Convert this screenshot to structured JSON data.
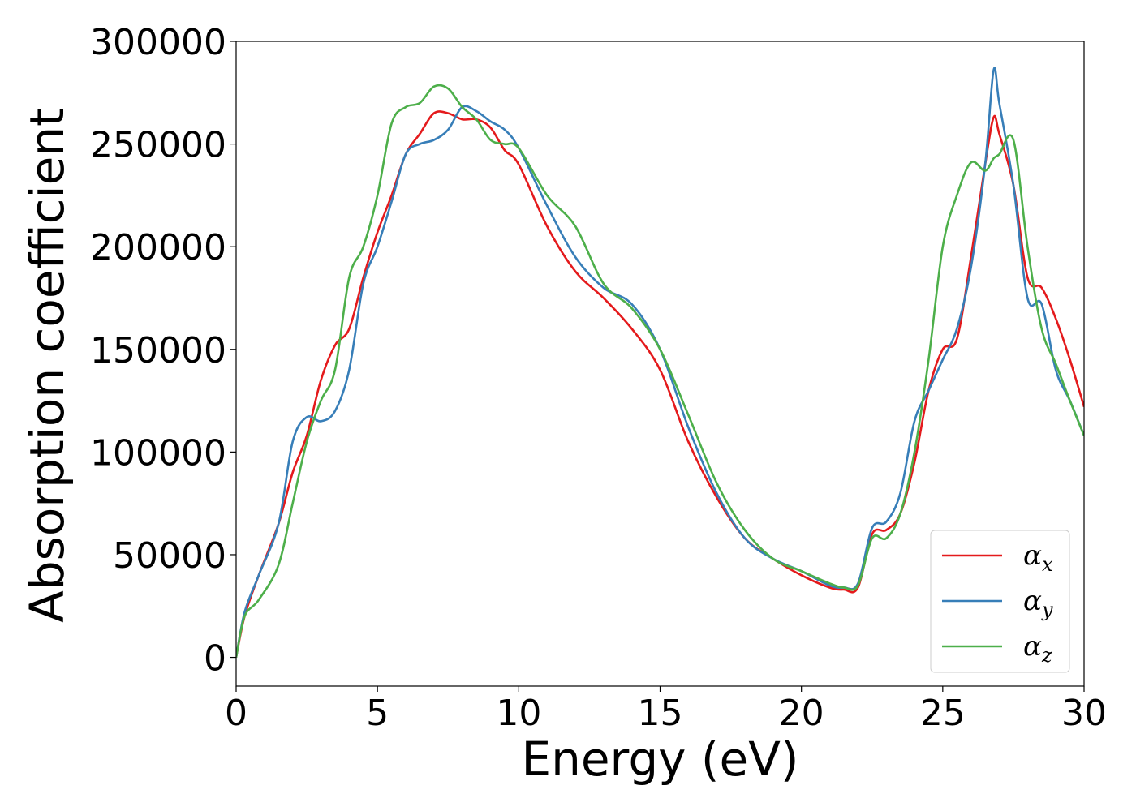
{
  "chart_data": {
    "type": "line",
    "title": "",
    "xlabel": "Energy (eV)",
    "ylabel": "Absorption coefficient",
    "xlim": [
      0,
      30
    ],
    "ylim": [
      -14000,
      300000
    ],
    "xticks": [
      0,
      5,
      10,
      15,
      20,
      25,
      30
    ],
    "xtick_labels": [
      "0",
      "5",
      "10",
      "15",
      "20",
      "25",
      "30"
    ],
    "yticks": [
      0,
      50000,
      100000,
      150000,
      200000,
      250000,
      300000
    ],
    "ytick_labels": [
      "0",
      "50000",
      "100000",
      "150000",
      "200000",
      "250000",
      "300000"
    ],
    "grid": false,
    "legend_position": "lower right",
    "series": [
      {
        "name": "α_x",
        "label_main": "α",
        "label_sub": "x",
        "color": "#e41a1c",
        "x": [
          0,
          0.3,
          0.8,
          1.5,
          2.0,
          2.5,
          3.0,
          3.5,
          4.0,
          4.5,
          5.0,
          5.5,
          6.0,
          6.5,
          7.0,
          7.5,
          8.0,
          8.5,
          9.0,
          9.5,
          10.0,
          11.0,
          12.0,
          13.0,
          14.0,
          15.0,
          16.0,
          17.0,
          18.0,
          19.0,
          20.0,
          21.0,
          21.5,
          22.0,
          22.5,
          23.0,
          23.5,
          24.0,
          24.5,
          25.0,
          25.5,
          26.0,
          26.5,
          26.8,
          27.0,
          27.5,
          28.0,
          28.5,
          29.0,
          29.5,
          30.0
        ],
        "y": [
          0,
          20000,
          40000,
          65000,
          90000,
          108000,
          135000,
          152000,
          160000,
          185000,
          207000,
          225000,
          245000,
          255000,
          265000,
          265000,
          262000,
          262000,
          258000,
          247000,
          240000,
          210000,
          188000,
          175000,
          160000,
          140000,
          105000,
          78000,
          58000,
          48000,
          40000,
          34000,
          33000,
          34000,
          60000,
          62000,
          70000,
          95000,
          130000,
          150000,
          155000,
          195000,
          240000,
          263000,
          255000,
          230000,
          185000,
          180000,
          165000,
          145000,
          122000
        ]
      },
      {
        "name": "α_y",
        "label_main": "α",
        "label_sub": "y",
        "color": "#377eb8",
        "x": [
          0,
          0.3,
          0.8,
          1.5,
          2.0,
          2.5,
          3.0,
          3.5,
          4.0,
          4.5,
          5.0,
          5.5,
          6.0,
          6.5,
          7.0,
          7.5,
          8.0,
          8.5,
          9.0,
          9.5,
          10.0,
          11.0,
          12.0,
          13.0,
          14.0,
          15.0,
          16.0,
          17.0,
          18.0,
          19.0,
          20.0,
          21.0,
          21.5,
          22.0,
          22.5,
          23.0,
          23.5,
          24.0,
          24.5,
          25.0,
          25.5,
          26.0,
          26.5,
          26.8,
          27.0,
          27.5,
          28.0,
          28.5,
          29.0,
          29.5,
          30.0
        ],
        "y": [
          0,
          22000,
          40000,
          65000,
          105000,
          117000,
          115000,
          120000,
          140000,
          182000,
          200000,
          222000,
          245000,
          250000,
          252000,
          257000,
          268000,
          266000,
          261000,
          257000,
          248000,
          220000,
          195000,
          180000,
          172000,
          150000,
          112000,
          80000,
          58000,
          48000,
          42000,
          35000,
          34000,
          36000,
          63000,
          66000,
          80000,
          115000,
          130000,
          145000,
          160000,
          190000,
          240000,
          286000,
          270000,
          230000,
          175000,
          172000,
          140000,
          125000,
          108000
        ]
      },
      {
        "name": "α_z",
        "label_main": "α",
        "label_sub": "z",
        "color": "#4daf4a",
        "x": [
          0,
          0.3,
          0.8,
          1.5,
          2.0,
          2.5,
          3.0,
          3.5,
          4.0,
          4.5,
          5.0,
          5.5,
          6.0,
          6.5,
          7.0,
          7.5,
          8.0,
          8.5,
          9.0,
          9.5,
          10.0,
          11.0,
          12.0,
          13.0,
          14.0,
          15.0,
          16.0,
          17.0,
          18.0,
          19.0,
          20.0,
          21.0,
          21.5,
          22.0,
          22.5,
          23.0,
          23.5,
          24.0,
          24.5,
          25.0,
          25.5,
          26.0,
          26.5,
          26.8,
          27.0,
          27.5,
          28.0,
          28.5,
          29.0,
          29.5,
          30.0
        ],
        "y": [
          0,
          20000,
          28000,
          45000,
          75000,
          105000,
          125000,
          140000,
          185000,
          200000,
          225000,
          260000,
          268000,
          270000,
          278000,
          277000,
          268000,
          262000,
          252000,
          250000,
          248000,
          225000,
          210000,
          182000,
          170000,
          150000,
          118000,
          85000,
          62000,
          48000,
          42000,
          36000,
          34000,
          35000,
          58000,
          58000,
          70000,
          100000,
          145000,
          200000,
          225000,
          241000,
          237000,
          243000,
          245000,
          252000,
          200000,
          160000,
          143000,
          125000,
          108000
        ]
      }
    ]
  }
}
